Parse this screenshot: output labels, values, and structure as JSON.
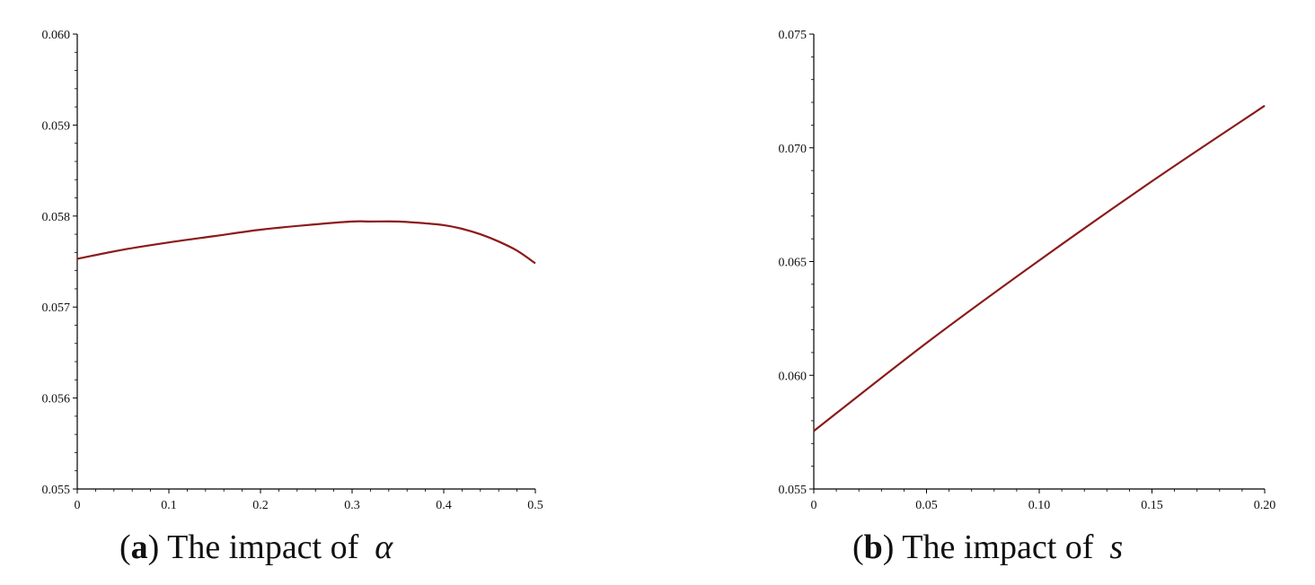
{
  "figure": {
    "panel_a": {
      "caption_open": "(",
      "caption_label": "a",
      "caption_close": ")",
      "caption_text": " The impact of",
      "caption_symbol": "α"
    },
    "panel_b": {
      "caption_open": "(",
      "caption_label": "b",
      "caption_close": ")",
      "caption_text": " The impact of",
      "caption_symbol": "s"
    }
  },
  "line_color": "#8b1a1a",
  "chart_data": [
    {
      "type": "line",
      "title": "",
      "xlabel": "",
      "ylabel": "",
      "xlim": [
        0,
        0.5
      ],
      "ylim": [
        0.055,
        0.06
      ],
      "xticks": [
        "0",
        "0.1",
        "0.2",
        "0.3",
        "0.4",
        "0.5"
      ],
      "xtick_values": [
        0,
        0.1,
        0.2,
        0.3,
        0.4,
        0.5
      ],
      "yticks": [
        "0.055",
        "0.056",
        "0.057",
        "0.058",
        "0.059",
        "0.060"
      ],
      "ytick_values": [
        0.055,
        0.056,
        0.057,
        0.058,
        0.059,
        0.06
      ],
      "series": [
        {
          "x": [
            0,
            0.05,
            0.1,
            0.15,
            0.2,
            0.25,
            0.3,
            0.32,
            0.35,
            0.38,
            0.4,
            0.42,
            0.44,
            0.46,
            0.48,
            0.5
          ],
          "values": [
            0.05753,
            0.05763,
            0.05771,
            0.05778,
            0.05785,
            0.0579,
            0.05794,
            0.05794,
            0.05794,
            0.05792,
            0.0579,
            0.05786,
            0.0578,
            0.05772,
            0.05762,
            0.05748
          ]
        }
      ],
      "grid": false
    },
    {
      "type": "line",
      "title": "",
      "xlabel": "",
      "ylabel": "",
      "xlim": [
        0,
        0.2
      ],
      "ylim": [
        0.055,
        0.075
      ],
      "xticks": [
        "0",
        "0.05",
        "0.10",
        "0.15",
        "0.20"
      ],
      "xtick_values": [
        0,
        0.05,
        0.1,
        0.15,
        0.2
      ],
      "yticks": [
        "0.055",
        "0.060",
        "0.065",
        "0.070",
        "0.075"
      ],
      "ytick_values": [
        0.055,
        0.06,
        0.065,
        0.07,
        0.075
      ],
      "series": [
        {
          "x": [
            0,
            0.05,
            0.1,
            0.15,
            0.2
          ],
          "values": [
            0.05755,
            0.06142,
            0.06505,
            0.06853,
            0.07185
          ]
        }
      ],
      "grid": false
    }
  ]
}
